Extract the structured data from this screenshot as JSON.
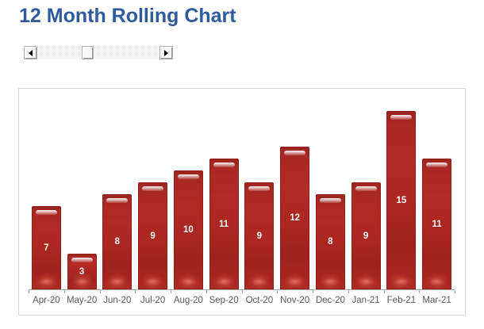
{
  "page": {
    "title": "12 Month Rolling Chart"
  },
  "colors": {
    "title": "#2F5B9D",
    "chart_border": "#D9D9D9",
    "background": "#FFFFFF"
  },
  "scrollbar": {
    "orientation": "horizontal",
    "left_button_icon": "left-arrow-icon",
    "right_button_icon": "right-arrow-icon"
  },
  "chart_data": {
    "type": "bar",
    "title": "12 Month Rolling Chart",
    "categories": [
      "Apr-20",
      "May-20",
      "Jun-20",
      "Jul-20",
      "Aug-20",
      "Sep-20",
      "Oct-20",
      "Nov-20",
      "Dec-20",
      "Jan-21",
      "Feb-21",
      "Mar-21"
    ],
    "values": [
      7,
      3,
      8,
      9,
      10,
      11,
      9,
      12,
      8,
      9,
      15,
      11
    ],
    "xlabel": "",
    "ylabel": "",
    "ylim": [
      0,
      17
    ],
    "grid": false,
    "legend": false,
    "data_labels": "center",
    "bar_style": "glossy",
    "bar_color": "#AE2A24",
    "bar_border_color": "#8E1F1B",
    "data_label_color": "#FFFFFF",
    "axis_color": "#A6A6A6",
    "tick_label_color": "#595959"
  }
}
